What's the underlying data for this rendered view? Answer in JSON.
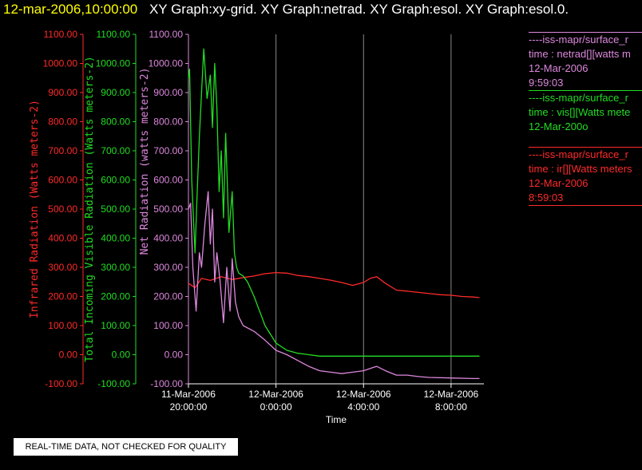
{
  "title": {
    "timestamp": "12-mar-2006,10:00:00",
    "graphs": "XY Graph:xy-grid.  XY Graph:netrad.  XY Graph:esol.  XY Graph:esol.0."
  },
  "colors": {
    "infrared": "#ff2a2a",
    "visible": "#22dd22",
    "net": "#dd88dd",
    "axis": "#ffffff",
    "grid": "#888888"
  },
  "legend": [
    {
      "line1": "----iss-mapr/surface_r",
      "line2": "time : netrad[][watts m",
      "line3": "12-Mar-2006",
      "line4": "9:59:03"
    },
    {
      "line1": "----iss-mapr/surface_r",
      "line2": "time : vis[][Watts mete",
      "line3": "12-Mar-200o",
      "line4": ""
    },
    {
      "line1": "----iss-mapr/surface_r",
      "line2": "time : ir[][Watts meters",
      "line3": "12-Mar-2006",
      "line4": "8:59:03"
    }
  ],
  "quality_note": "REAL-TIME DATA, NOT CHECKED FOR QUALITY",
  "chart_data": {
    "type": "line",
    "xlabel": "Time",
    "xlim": [
      20,
      33.5
    ],
    "x_ticks": [
      {
        "x": 20,
        "l1": "11-Mar-2006",
        "l2": "20:00:00"
      },
      {
        "x": 24,
        "l1": "12-Mar-2006",
        "l2": "0:00:00"
      },
      {
        "x": 28,
        "l1": "12-Mar-2006",
        "l2": "4:00:00"
      },
      {
        "x": 32,
        "l1": "12-Mar-2006",
        "l2": "8:00:00"
      }
    ],
    "grid_x": [
      24,
      28,
      32
    ],
    "ylim": [
      -100,
      1100
    ],
    "y_ticks": [
      "-100.00",
      "0.00",
      "100.00",
      "200.00",
      "300.00",
      "400.00",
      "500.00",
      "600.00",
      "700.00",
      "800.00",
      "900.00",
      "1000.00",
      "1100.00"
    ],
    "y_axes": [
      {
        "label": "Infrared Radiation (Watts meters-2)",
        "series": "infrared"
      },
      {
        "label": "Total Incoming Visible Radiation (Watts meters-2)",
        "series": "visible"
      },
      {
        "label": "Net Radiation (watts meters-2)",
        "series": "net"
      }
    ],
    "series": [
      {
        "id": "infrared",
        "color": "#ff2a2a",
        "x": [
          20,
          20.3,
          20.6,
          21,
          21.5,
          22,
          22.5,
          23,
          23.5,
          24,
          24.5,
          25,
          25.5,
          26,
          26.5,
          27,
          27.5,
          28,
          28.3,
          28.6,
          29,
          29.5,
          30,
          30.5,
          31,
          31.5,
          32,
          32.5,
          33,
          33.3
        ],
        "y": [
          245,
          230,
          262,
          255,
          268,
          258,
          265,
          270,
          278,
          282,
          280,
          272,
          268,
          262,
          256,
          248,
          238,
          248,
          262,
          268,
          245,
          222,
          218,
          214,
          210,
          206,
          204,
          200,
          198,
          196
        ]
      },
      {
        "id": "visible",
        "color": "#22dd22",
        "x": [
          20,
          20.05,
          20.15,
          20.3,
          20.4,
          20.5,
          20.6,
          20.7,
          20.85,
          21,
          21.1,
          21.2,
          21.3,
          21.4,
          21.5,
          21.6,
          21.7,
          21.85,
          22,
          22.1,
          22.2,
          22.3,
          22.5,
          22.7,
          23,
          23.5,
          24,
          24.5,
          25,
          25.5,
          26,
          26.5,
          27,
          28,
          29,
          30,
          31,
          32,
          33,
          33.3
        ],
        "y": [
          950,
          980,
          600,
          350,
          560,
          750,
          900,
          1050,
          880,
          960,
          780,
          1000,
          850,
          560,
          700,
          470,
          760,
          420,
          560,
          350,
          300,
          280,
          270,
          250,
          200,
          100,
          40,
          15,
          5,
          0,
          -5,
          -5,
          -5,
          -5,
          -5,
          -5,
          -5,
          -5,
          -5,
          -5
        ]
      },
      {
        "id": "net",
        "color": "#dd88dd",
        "x": [
          20,
          20.1,
          20.2,
          20.35,
          20.5,
          20.6,
          20.75,
          20.9,
          21,
          21.1,
          21.2,
          21.3,
          21.45,
          21.6,
          21.75,
          21.9,
          22,
          22.15,
          22.3,
          22.5,
          23,
          23.5,
          24,
          24.5,
          25,
          25.5,
          26,
          26.5,
          27,
          27.5,
          28,
          28.4,
          28.6,
          29,
          29.5,
          30,
          30.5,
          31,
          32,
          33,
          33.3
        ],
        "y": [
          500,
          520,
          300,
          150,
          350,
          300,
          450,
          560,
          380,
          500,
          250,
          350,
          250,
          110,
          300,
          150,
          330,
          180,
          130,
          100,
          80,
          50,
          15,
          0,
          -20,
          -40,
          -55,
          -60,
          -65,
          -60,
          -55,
          -45,
          -40,
          -55,
          -70,
          -70,
          -75,
          -78,
          -80,
          -82,
          -82
        ]
      }
    ]
  }
}
